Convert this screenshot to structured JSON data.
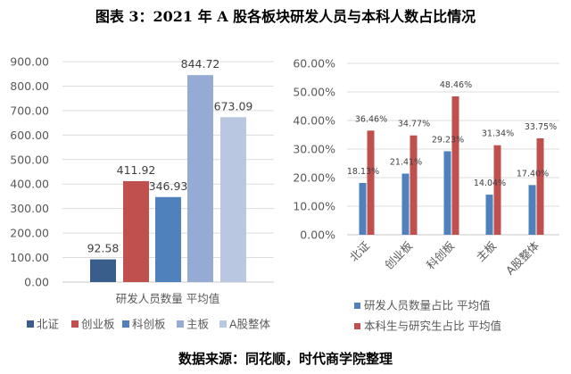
{
  "title": "图表 3：2021 年 A 股各板块研发人员与本科人数占比情况",
  "source": "数据来源：同花顺，时代商学院整理",
  "chart_data": [
    {
      "type": "bar",
      "title": "",
      "categories": [
        "研发人员数量 平均值"
      ],
      "series": [
        {
          "name": "北证",
          "values": [
            92.58
          ],
          "color": "#3a5e8c"
        },
        {
          "name": "创业板",
          "values": [
            411.92
          ],
          "color": "#c0504d"
        },
        {
          "name": "科创板",
          "values": [
            346.93
          ],
          "color": "#4f81bd"
        },
        {
          "name": "主板",
          "values": [
            844.72
          ],
          "color": "#95abd3"
        },
        {
          "name": "A股整体",
          "values": [
            673.09
          ],
          "color": "#b9c7e0"
        }
      ],
      "data_labels": [
        "92.58",
        "411.92",
        "346.93",
        "844.72",
        "673.09"
      ],
      "yticks": [
        "0.00",
        "100.00",
        "200.00",
        "300.00",
        "400.00",
        "500.00",
        "600.00",
        "700.00",
        "800.00",
        "900.00"
      ],
      "ylim": [
        0,
        900
      ],
      "grid": true,
      "legend": "bottom"
    },
    {
      "type": "bar",
      "title": "",
      "categories": [
        "北证",
        "创业板",
        "科创板",
        "主板",
        "A股整体"
      ],
      "series": [
        {
          "name": "研发人员数量占比 平均值",
          "values": [
            18.13,
            21.41,
            29.23,
            14.04,
            17.4
          ],
          "labels": [
            "18.13%",
            "21.41%",
            "29.23%",
            "14.04%",
            "17.40%"
          ],
          "color": "#4f81bd"
        },
        {
          "name": "本科生与研究生占比 平均值",
          "values": [
            36.46,
            34.77,
            48.46,
            31.34,
            33.75
          ],
          "labels": [
            "36.46%",
            "34.77%",
            "48.46%",
            "31.34%",
            "33.75%"
          ],
          "color": "#c0504d"
        }
      ],
      "yticks": [
        "0.00%",
        "10.00%",
        "20.00%",
        "30.00%",
        "40.00%",
        "50.00%",
        "60.00%"
      ],
      "ylim": [
        0,
        60
      ],
      "grid": true,
      "legend": "bottom"
    }
  ]
}
